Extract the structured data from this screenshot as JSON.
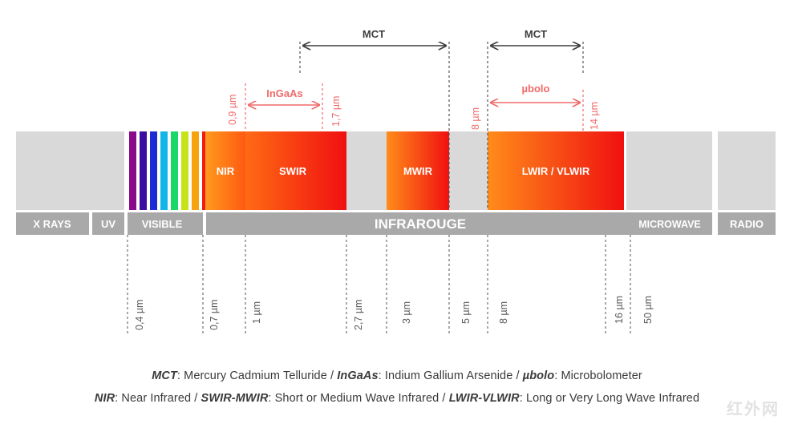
{
  "colors": {
    "gray_block": "#d9d9d9",
    "gray_bar": "#a9a9a9",
    "detector_red": "#f06a6a",
    "dark_text": "#3d3d3d",
    "visible_stripes": [
      "#8b0a8b",
      "#3a0ea0",
      "#1a2bd6",
      "#11b5e8",
      "#19d86a",
      "#c8e21a",
      "#f7a30f",
      "#f01c12"
    ]
  },
  "spectrum": {
    "bands": [
      {
        "id": "x-rays",
        "label": "X RAYS"
      },
      {
        "id": "uv",
        "label": "UV"
      },
      {
        "id": "visible",
        "label": "VISIBLE"
      },
      {
        "id": "infrarouge",
        "label": "INFRAROUGE"
      },
      {
        "id": "microwave",
        "label": "MICROWAVE"
      },
      {
        "id": "radio",
        "label": "RADIO"
      }
    ],
    "ir_regions": [
      {
        "id": "nir",
        "label": "NIR"
      },
      {
        "id": "swir",
        "label": "SWIR"
      },
      {
        "id": "mwir",
        "label": "MWIR"
      },
      {
        "id": "lwir",
        "label": "LWIR / VLWIR"
      }
    ],
    "wavelength_ticks": [
      "0,4 µm",
      "0,7 µm",
      "1 µm",
      "2,7 µm",
      "3 µm",
      "5 µm",
      "8 µm",
      "16 µm",
      "50 µm"
    ]
  },
  "detectors": {
    "mct_swir_mwir": {
      "label": "MCT"
    },
    "mct_lwir": {
      "label": "MCT"
    },
    "ingaas": {
      "label": "InGaAs",
      "start": "0,9 µm",
      "end": "1,7 µm"
    },
    "ubolo": {
      "label": "µbolo",
      "start": "8 µm",
      "end": "14 µm"
    }
  },
  "legend": {
    "line1": [
      {
        "term": "MCT",
        "definition": ": Mercury Cadmium Telluride / "
      },
      {
        "term": "InGaAs",
        "definition": ": Indium Gallium Arsenide / "
      },
      {
        "term": "µbolo",
        "definition": ": Microbolometer"
      }
    ],
    "line2": [
      {
        "term": "NIR",
        "definition": ": Near Infrared / "
      },
      {
        "term": "SWIR-MWIR",
        "definition": ": Short or Medium Wave Infrared / "
      },
      {
        "term": "LWIR-VLWIR",
        "definition": ": Long or Very Long Wave Infrared"
      }
    ]
  },
  "watermark": "红外网"
}
